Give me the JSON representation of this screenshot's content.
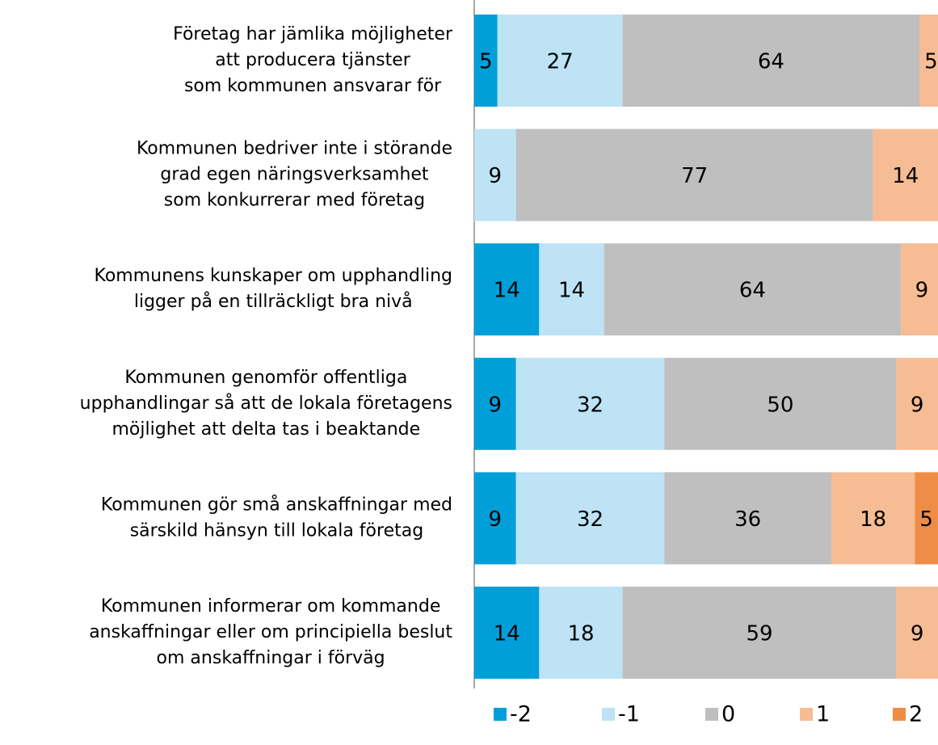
{
  "chart_data": {
    "type": "stacked-bar-horizontal",
    "categories": [
      [
        "Företag har jämlika möjligheter",
        "att producera tjänster",
        "som kommunen ansvarar för"
      ],
      [
        "Kommunen bedriver inte i störande",
        "grad egen näringsverksamhet",
        "som konkurrerar med företag"
      ],
      [
        "Kommunens kunskaper om upphandling",
        "ligger på en tillräckligt bra nivå"
      ],
      [
        "Kommunen genomför offentliga",
        "upphandlingar så att de lokala företagens",
        "möjlighet att delta tas i beaktande"
      ],
      [
        "Kommunen gör små anskaffningar med",
        "särskild hänsyn till lokala företag"
      ],
      [
        "Kommunen informerar om kommande",
        "anskaffningar eller om principiella beslut",
        "om anskaffningar i förväg"
      ]
    ],
    "series": [
      {
        "name": "-2",
        "color": "#009fd9",
        "values": [
          5,
          null,
          14,
          9,
          9,
          14
        ]
      },
      {
        "name": "-1",
        "color": "#bde3f5",
        "values": [
          27,
          9,
          14,
          32,
          32,
          18
        ]
      },
      {
        "name": "0",
        "color": "#bfbfbf",
        "values": [
          64,
          77,
          64,
          50,
          36,
          59
        ]
      },
      {
        "name": "1",
        "color": "#f6bc94",
        "values": [
          5,
          14,
          9,
          9,
          18,
          9
        ]
      },
      {
        "name": "2",
        "color": "#ef8d47",
        "values": [
          null,
          null,
          null,
          null,
          5,
          null
        ]
      }
    ],
    "xlim": [
      0,
      100
    ],
    "legend": "bottom"
  }
}
